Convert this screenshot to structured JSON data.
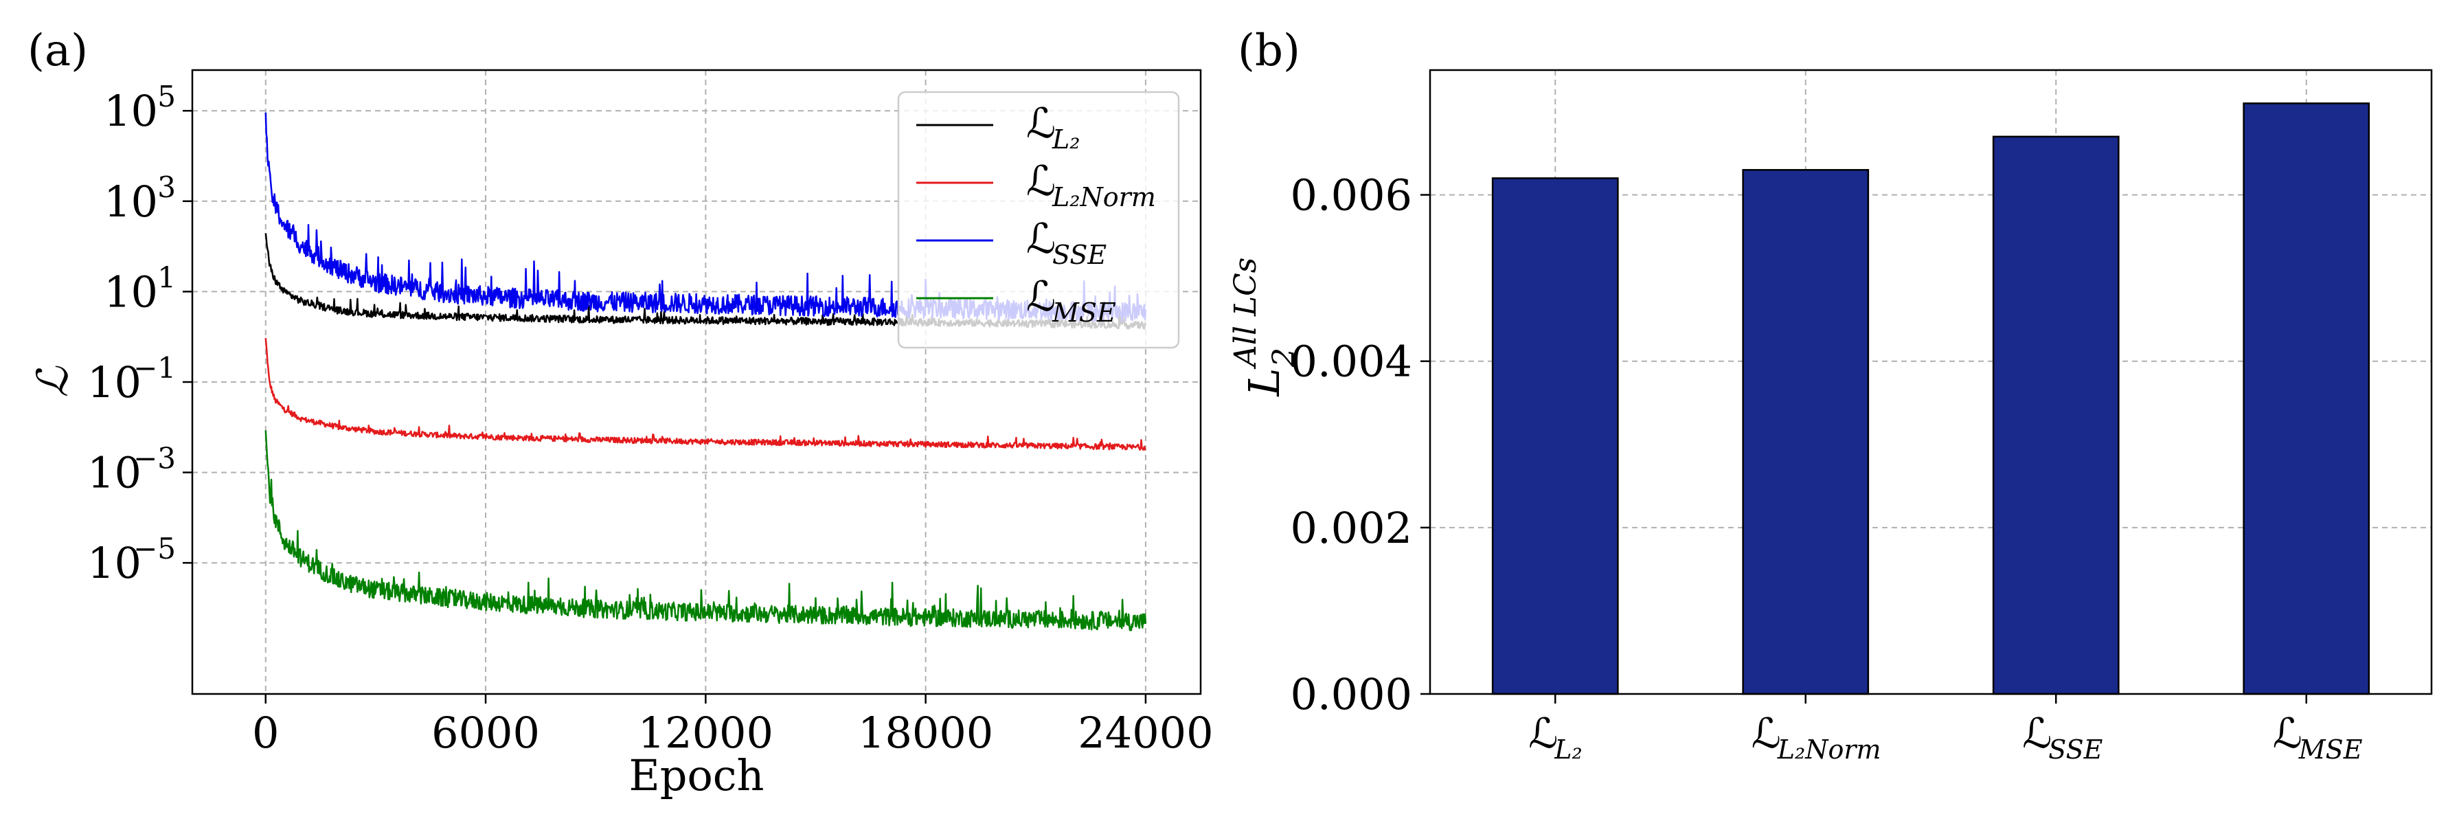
{
  "panels": {
    "left_label": "(a)",
    "right_label": "(b)"
  },
  "chart_data": [
    {
      "type": "line",
      "ylog": true,
      "xlabel": "Epoch",
      "ylabel": "ℒ",
      "xlim": [
        -2000,
        25500
      ],
      "ylim_log10": [
        -7.9,
        5.9
      ],
      "x_ticks": [
        0,
        6000,
        12000,
        18000,
        24000
      ],
      "x_tick_labels": [
        "0",
        "6000",
        "12000",
        "18000",
        "24000"
      ],
      "y_ticks_log10": [
        5,
        3,
        1,
        -1,
        -3,
        -5
      ],
      "y_tick_labels": [
        {
          "base": "10",
          "exp": "5"
        },
        {
          "base": "10",
          "exp": "3"
        },
        {
          "base": "10",
          "exp": "1"
        },
        {
          "base": "10",
          "exp": "−1"
        },
        {
          "base": "10",
          "exp": "−3"
        },
        {
          "base": "10",
          "exp": "−5"
        }
      ],
      "grid": true,
      "legend_position": "top-right",
      "series": [
        {
          "name": "ℒ_L2",
          "legend_main": "ℒ",
          "legend_sub": "L₂",
          "color": "#000000",
          "x": [
            0,
            100,
            250,
            500,
            1000,
            2000,
            3000,
            5000,
            7000,
            9000,
            12000,
            15000,
            18000,
            21000,
            24000
          ],
          "y": [
            200,
            40,
            18,
            10,
            6,
            3.8,
            3.2,
            2.8,
            2.6,
            2.4,
            2.3,
            2.2,
            2.1,
            1.95,
            1.8
          ],
          "noise_log10": 0.08
        },
        {
          "name": "ℒ_L2Norm",
          "legend_main": "ℒ",
          "legend_sub": "L₂Norm",
          "color": "#e41a1c",
          "x": [
            0,
            100,
            250,
            500,
            1000,
            2000,
            3000,
            5000,
            7000,
            9000,
            12000,
            15000,
            18000,
            21000,
            24000
          ],
          "y": [
            0.9,
            0.1,
            0.04,
            0.025,
            0.015,
            0.01,
            0.008,
            0.0065,
            0.0058,
            0.0053,
            0.0048,
            0.0045,
            0.0042,
            0.0039,
            0.0036
          ],
          "noise_log10": 0.06
        },
        {
          "name": "ℒ_SSE",
          "legend_main": "ℒ",
          "legend_sub": "SSE",
          "color": "#0000ee",
          "x": [
            0,
            100,
            250,
            500,
            1000,
            2000,
            3000,
            5000,
            7000,
            9000,
            12000,
            15000,
            18000,
            21000,
            24000
          ],
          "y": [
            60000,
            3000,
            800,
            300,
            100,
            30,
            16,
            9,
            7,
            6,
            5.4,
            4.8,
            4.3,
            3.9,
            3.5
          ],
          "noise_log10": 0.22
        },
        {
          "name": "ℒ_MSE",
          "legend_main": "ℒ",
          "legend_sub": "MSE",
          "color": "#008000",
          "x": [
            0,
            100,
            250,
            500,
            1000,
            2000,
            3000,
            5000,
            7000,
            9000,
            12000,
            15000,
            18000,
            21000,
            24000
          ],
          "y": [
            0.007,
            0.0004,
            0.0001,
            3e-05,
            1.2e-05,
            4e-06,
            2.5e-06,
            1.6e-06,
            1.2e-06,
            9.5e-07,
            8e-07,
            7e-07,
            6.2e-07,
            5.6e-07,
            5e-07
          ],
          "noise_log10": 0.2
        }
      ]
    },
    {
      "type": "bar",
      "ylabel_main": "L",
      "ylabel_sub": "2",
      "ylabel_sup": "All LCs",
      "categories": [
        {
          "main": "ℒ",
          "sub": "L₂"
        },
        {
          "main": "ℒ",
          "sub": "L₂Norm"
        },
        {
          "main": "ℒ",
          "sub": "SSE"
        },
        {
          "main": "ℒ",
          "sub": "MSE"
        }
      ],
      "values": [
        0.0062,
        0.0063,
        0.0067,
        0.0071
      ],
      "ylim": [
        0,
        0.0075
      ],
      "y_ticks": [
        0,
        0.002,
        0.004,
        0.006
      ],
      "y_tick_labels": [
        "0.000",
        "0.002",
        "0.004",
        "0.006"
      ],
      "bar_color": "#1a2a8c",
      "grid": true
    }
  ]
}
